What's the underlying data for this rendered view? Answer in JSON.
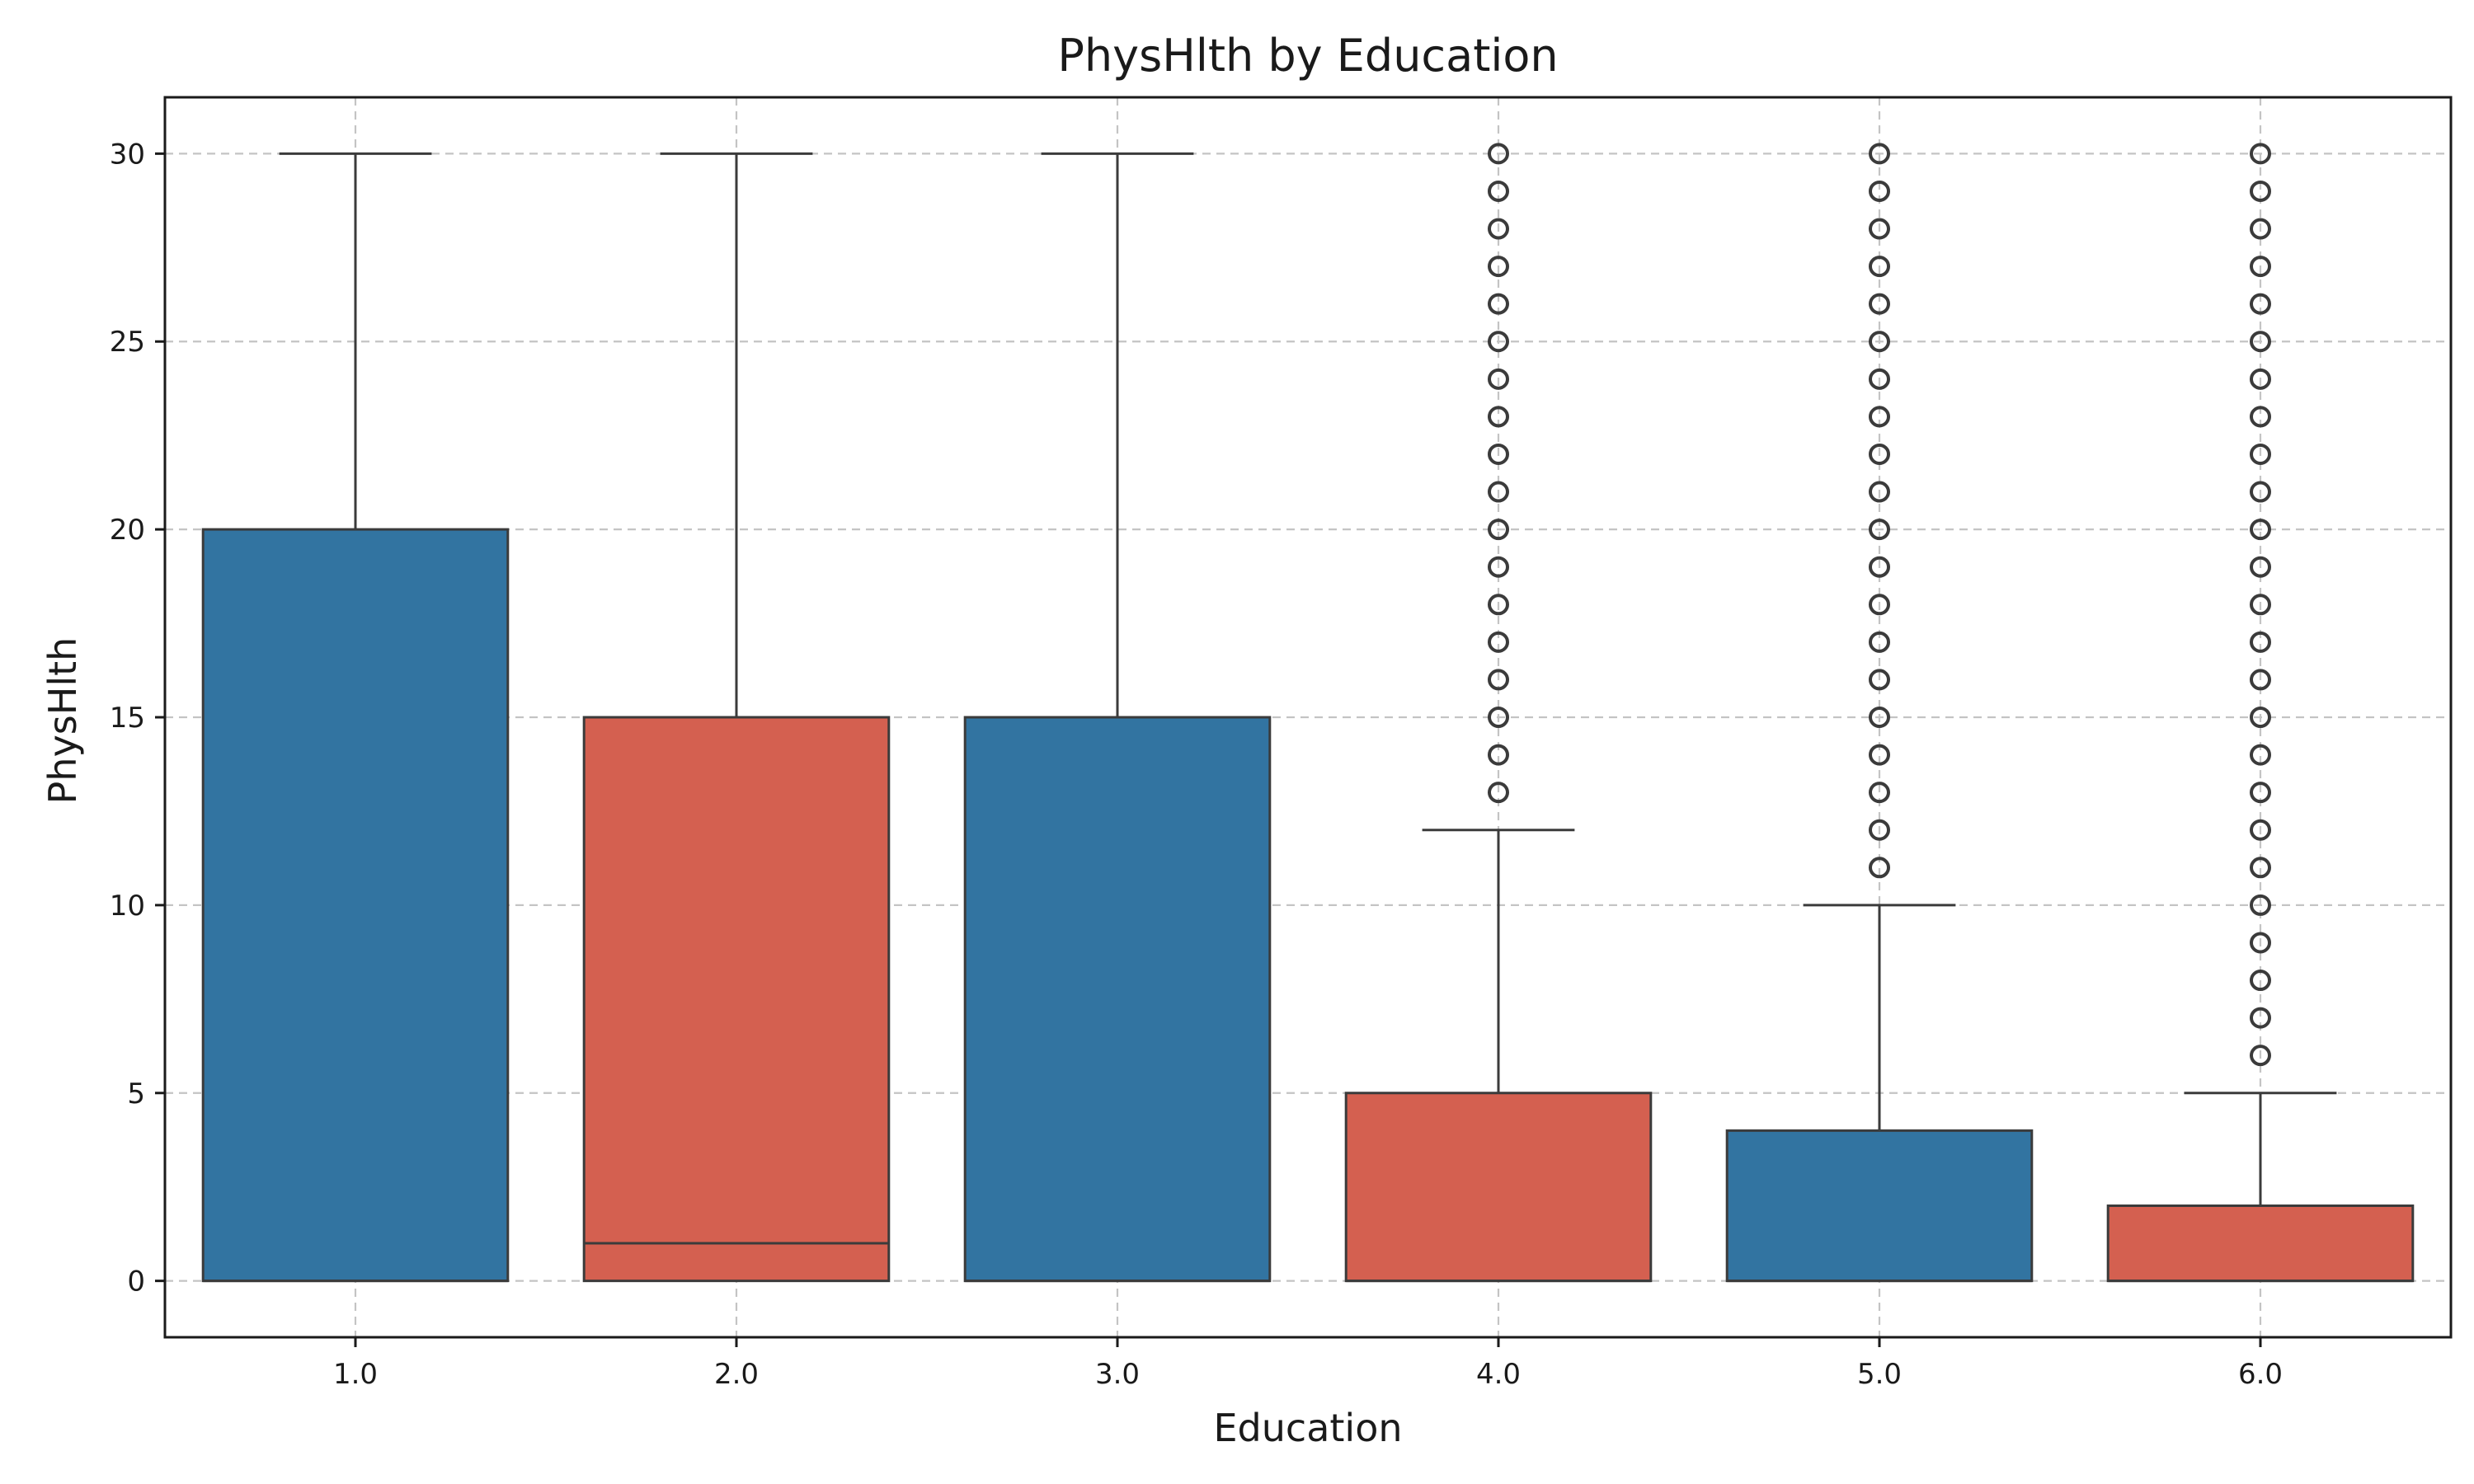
{
  "chart_data": {
    "type": "box",
    "title": "PhysHlth by Education",
    "xlabel": "Education",
    "ylabel": "PhysHlth",
    "categories": [
      "1.0",
      "2.0",
      "3.0",
      "4.0",
      "5.0",
      "6.0"
    ],
    "ylim": [
      -1.5,
      31.5
    ],
    "yticks": [
      0,
      5,
      10,
      15,
      20,
      25,
      30
    ],
    "grid": true,
    "colors": [
      "#3274a1",
      "#d46050",
      "#3274a1",
      "#d46050",
      "#3274a1",
      "#d46050"
    ],
    "boxes": [
      {
        "category": "1.0",
        "q1": 0,
        "median": 0,
        "q3": 20,
        "whisker_low": 0,
        "whisker_high": 30,
        "fliers": []
      },
      {
        "category": "2.0",
        "q1": 0,
        "median": 1,
        "q3": 15,
        "whisker_low": 0,
        "whisker_high": 30,
        "fliers": []
      },
      {
        "category": "3.0",
        "q1": 0,
        "median": 0,
        "q3": 15,
        "whisker_low": 0,
        "whisker_high": 30,
        "fliers": []
      },
      {
        "category": "4.0",
        "q1": 0,
        "median": 0,
        "q3": 5,
        "whisker_low": 0,
        "whisker_high": 12,
        "fliers": [
          13,
          14,
          15,
          16,
          17,
          18,
          19,
          20,
          21,
          22,
          23,
          24,
          25,
          26,
          27,
          28,
          29,
          30
        ]
      },
      {
        "category": "5.0",
        "q1": 0,
        "median": 0,
        "q3": 4,
        "whisker_low": 0,
        "whisker_high": 10,
        "fliers": [
          11,
          12,
          13,
          14,
          15,
          16,
          17,
          18,
          19,
          20,
          21,
          22,
          23,
          24,
          25,
          26,
          27,
          28,
          29,
          30
        ]
      },
      {
        "category": "6.0",
        "q1": 0,
        "median": 0,
        "q3": 2,
        "whisker_low": 0,
        "whisker_high": 5,
        "fliers": [
          6,
          7,
          8,
          9,
          10,
          11,
          12,
          13,
          14,
          15,
          16,
          17,
          18,
          19,
          20,
          21,
          22,
          23,
          24,
          25,
          26,
          27,
          28,
          29,
          30
        ]
      }
    ]
  }
}
